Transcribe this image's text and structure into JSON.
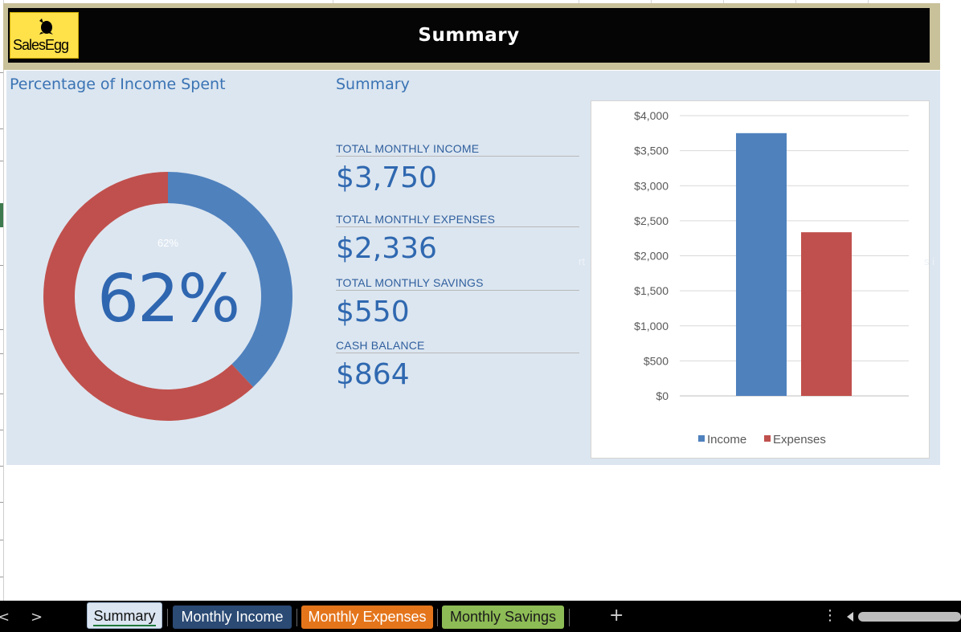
{
  "header": {
    "title": "Summary",
    "logo_text": "SalesEgg"
  },
  "donut_section": {
    "title": "Percentage of Income Spent",
    "small_label": "62%",
    "big_label": "62%"
  },
  "summary_section": {
    "title": "Summary",
    "kpis": [
      {
        "label": "TOTAL MONTHLY INCOME",
        "value": "$3,750"
      },
      {
        "label": "TOTAL MONTHLY EXPENSES",
        "value": "$2,336"
      },
      {
        "label": "TOTAL MONTHLY SAVINGS",
        "value": "$550"
      },
      {
        "label": "CASH BALANCE",
        "value": "$864"
      }
    ]
  },
  "faint_text": {
    "left": "rt",
    "right": "s i"
  },
  "chart_data": [
    {
      "type": "pie",
      "subtype": "doughnut",
      "title": "Percentage of Income Spent",
      "values": [
        0.38,
        0.62
      ],
      "colors": [
        "#4f81bd",
        "#c0504d"
      ]
    },
    {
      "type": "bar",
      "categories": [
        "Income",
        "Expenses"
      ],
      "values": [
        3750,
        2336
      ],
      "colors": [
        "#4f81bd",
        "#c0504d"
      ],
      "ylim": [
        0,
        4000
      ],
      "yticks": [
        "$0",
        "$500",
        "$1,000",
        "$1,500",
        "$2,000",
        "$2,500",
        "$3,000",
        "$3,500",
        "$4,000"
      ],
      "legend": [
        "Income",
        "Expenses"
      ],
      "legend_position": "bottom",
      "grid": true
    }
  ],
  "tabs": {
    "prev": "<",
    "next": ">",
    "items": [
      "Summary",
      "Monthly Income",
      "Monthly Expenses",
      "Monthly Savings"
    ],
    "add": "+",
    "more": "⋮"
  }
}
